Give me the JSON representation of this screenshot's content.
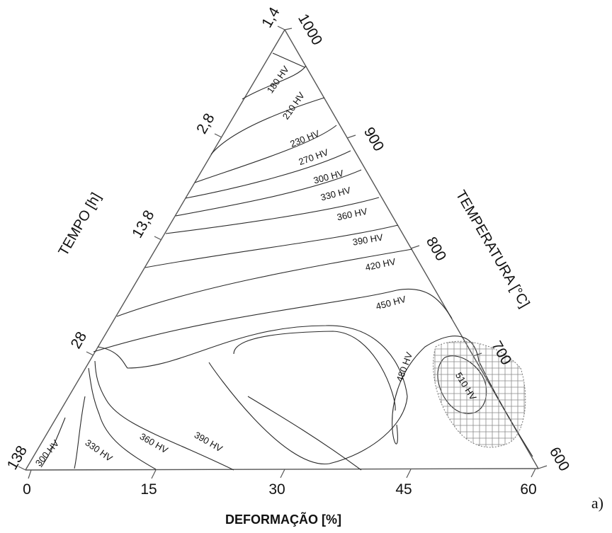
{
  "axes": {
    "bottom": {
      "title": "DEFORMAÇÃO [%]",
      "ticks": [
        "0",
        "15",
        "30",
        "45",
        "60"
      ]
    },
    "left": {
      "title": "TEMPO [h]",
      "ticks": [
        "1,4",
        "2,8",
        "13,8",
        "28",
        "138"
      ]
    },
    "right": {
      "title": "TEMPERATURA [°C]",
      "ticks": [
        "1000",
        "900",
        "800",
        "700",
        "600"
      ]
    }
  },
  "contour_labels": [
    "180 HV",
    "210 HV",
    "230 HV",
    "270 HV",
    "300 HV",
    "330 HV",
    "360 HV",
    "390 HV",
    "420 HV",
    "450 HV",
    "480 HV",
    "510 HV",
    "300 HV",
    "330 HV",
    "360 HV",
    "390 HV"
  ],
  "panel_label": "a)",
  "colors": {
    "line": "#2a2a2a",
    "axis": "#555555",
    "hatch": "#8a8a8a"
  }
}
